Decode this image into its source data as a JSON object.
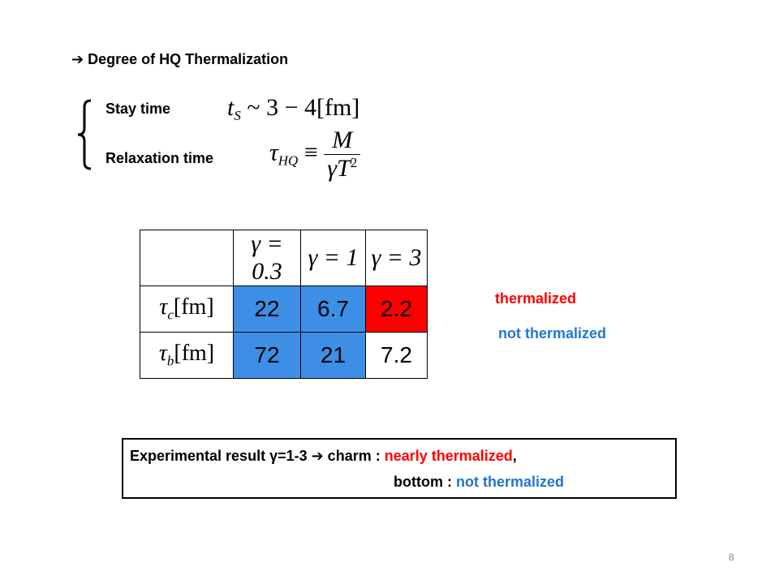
{
  "heading": "➔ Degree of HQ Thermalization",
  "stay_time": {
    "label": "Stay time",
    "formula": {
      "var": "t",
      "sub": "S",
      "rest": "~ 3 − 4[fm]"
    }
  },
  "relaxation_time": {
    "label": "Relaxation time",
    "formula": {
      "var": "τ",
      "sub": "HQ",
      "op": "≡",
      "numerator": "M",
      "denominator": "γT",
      "power": "2"
    }
  },
  "table": {
    "header": [
      "γ = 0.3",
      "γ = 1",
      "γ = 3"
    ],
    "rows": [
      {
        "var": "τ",
        "sub": "c",
        "unit": "[fm]",
        "cells": [
          "22",
          "6.7",
          "2.2"
        ],
        "colors": [
          "#3d8fe6",
          "#3d8fe6",
          "#ff0000"
        ]
      },
      {
        "var": "τ",
        "sub": "b",
        "unit": "[fm]",
        "cells": [
          "72",
          "21",
          "7.2"
        ],
        "colors": [
          "#3d8fe6",
          "#3d8fe6",
          "#ffffff"
        ]
      }
    ]
  },
  "legend": {
    "thermalized": "thermalized",
    "not_thermalized": "not thermalized"
  },
  "conclusion": {
    "line1": {
      "prefix": "Experimental result γ=1-3 ➔ charm : ",
      "highlight": "nearly thermalized",
      "suffix": ","
    },
    "line2": {
      "prefix": "bottom : ",
      "highlight": "not thermalized"
    }
  },
  "page_number": "8"
}
